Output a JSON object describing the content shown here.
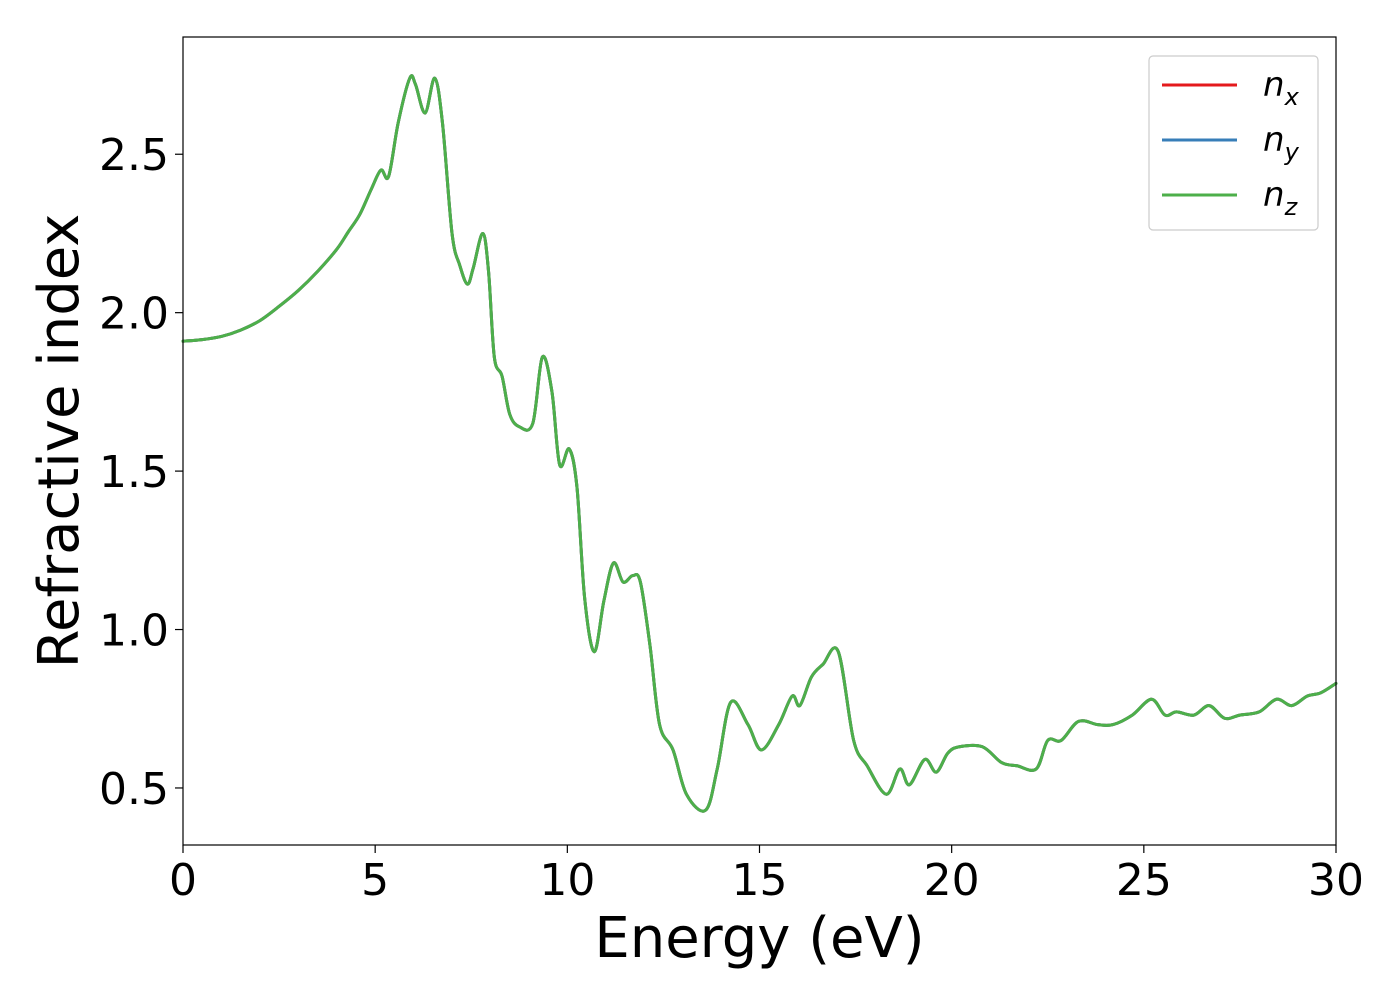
{
  "chart_data": {
    "type": "line",
    "title": "",
    "xlabel": "Energy (eV)",
    "ylabel": "Refractive index",
    "xlim": [
      0,
      30
    ],
    "ylim": [
      0.32,
      2.87
    ],
    "xticks": [
      "0",
      "5",
      "10",
      "15",
      "20",
      "25",
      "30"
    ],
    "yticks": [
      "0.5",
      "1.0",
      "1.5",
      "2.0",
      "2.5"
    ],
    "grid": false,
    "legend_position": "top-right",
    "series": [
      {
        "name": "n_x",
        "label_base": "n",
        "label_sub": "x",
        "color": "#e41a1c",
        "x": [
          0,
          0.5,
          1,
          1.5,
          2,
          2.5,
          3,
          3.5,
          4,
          4.3,
          4.6,
          4.9,
          5.15,
          5.35,
          5.6,
          5.9,
          6.05,
          6.3,
          6.55,
          6.75,
          7,
          7.2,
          7.4,
          7.55,
          7.8,
          7.95,
          8.1,
          8.3,
          8.5,
          8.75,
          9.1,
          9.35,
          9.6,
          9.8,
          10.05,
          10.25,
          10.45,
          10.7,
          10.95,
          11.2,
          11.45,
          11.7,
          11.9,
          12.15,
          12.4,
          12.75,
          13.1,
          13.6,
          13.9,
          14.25,
          14.7,
          15.05,
          15.5,
          15.85,
          16.05,
          16.35,
          16.65,
          17.05,
          17.45,
          17.8,
          18.3,
          18.65,
          18.9,
          19.3,
          19.6,
          19.9,
          20.2,
          20.8,
          21.3,
          21.7,
          22.2,
          22.5,
          22.85,
          23.3,
          23.8,
          24.2,
          24.7,
          25.2,
          25.55,
          25.85,
          26.3,
          26.7,
          27.1,
          27.5,
          28,
          28.45,
          28.85,
          29.25,
          29.6,
          30
        ],
        "y": [
          1.91,
          1.915,
          1.925,
          1.945,
          1.975,
          2.02,
          2.07,
          2.13,
          2.2,
          2.255,
          2.31,
          2.39,
          2.45,
          2.43,
          2.6,
          2.74,
          2.72,
          2.63,
          2.74,
          2.6,
          2.25,
          2.15,
          2.09,
          2.14,
          2.25,
          2.13,
          1.86,
          1.8,
          1.68,
          1.64,
          1.65,
          1.86,
          1.75,
          1.52,
          1.57,
          1.45,
          1.1,
          0.93,
          1.09,
          1.21,
          1.15,
          1.17,
          1.15,
          0.95,
          0.7,
          0.62,
          0.48,
          0.43,
          0.56,
          0.77,
          0.7,
          0.62,
          0.7,
          0.79,
          0.76,
          0.85,
          0.89,
          0.93,
          0.65,
          0.57,
          0.48,
          0.56,
          0.51,
          0.59,
          0.55,
          0.61,
          0.63,
          0.63,
          0.58,
          0.57,
          0.56,
          0.65,
          0.65,
          0.71,
          0.7,
          0.7,
          0.73,
          0.78,
          0.73,
          0.74,
          0.73,
          0.76,
          0.72,
          0.73,
          0.74,
          0.78,
          0.76,
          0.79,
          0.8,
          0.83
        ]
      },
      {
        "name": "n_y",
        "label_base": "n",
        "label_sub": "y",
        "color": "#377eb8",
        "x": [
          0,
          0.5,
          1,
          1.5,
          2,
          2.5,
          3,
          3.5,
          4,
          4.3,
          4.6,
          4.9,
          5.15,
          5.35,
          5.6,
          5.9,
          6.05,
          6.3,
          6.55,
          6.75,
          7,
          7.2,
          7.4,
          7.55,
          7.8,
          7.95,
          8.1,
          8.3,
          8.5,
          8.75,
          9.1,
          9.35,
          9.6,
          9.8,
          10.05,
          10.25,
          10.45,
          10.7,
          10.95,
          11.2,
          11.45,
          11.7,
          11.9,
          12.15,
          12.4,
          12.75,
          13.1,
          13.6,
          13.9,
          14.25,
          14.7,
          15.05,
          15.5,
          15.85,
          16.05,
          16.35,
          16.65,
          17.05,
          17.45,
          17.8,
          18.3,
          18.65,
          18.9,
          19.3,
          19.6,
          19.9,
          20.2,
          20.8,
          21.3,
          21.7,
          22.2,
          22.5,
          22.85,
          23.3,
          23.8,
          24.2,
          24.7,
          25.2,
          25.55,
          25.85,
          26.3,
          26.7,
          27.1,
          27.5,
          28,
          28.45,
          28.85,
          29.25,
          29.6,
          30
        ],
        "y": [
          1.91,
          1.915,
          1.925,
          1.945,
          1.975,
          2.02,
          2.07,
          2.13,
          2.2,
          2.255,
          2.31,
          2.39,
          2.45,
          2.43,
          2.6,
          2.74,
          2.72,
          2.63,
          2.74,
          2.6,
          2.25,
          2.15,
          2.09,
          2.14,
          2.25,
          2.13,
          1.86,
          1.8,
          1.68,
          1.64,
          1.65,
          1.86,
          1.75,
          1.52,
          1.57,
          1.45,
          1.1,
          0.93,
          1.09,
          1.21,
          1.15,
          1.17,
          1.15,
          0.95,
          0.7,
          0.62,
          0.48,
          0.43,
          0.56,
          0.77,
          0.7,
          0.62,
          0.7,
          0.79,
          0.76,
          0.85,
          0.89,
          0.93,
          0.65,
          0.57,
          0.48,
          0.56,
          0.51,
          0.59,
          0.55,
          0.61,
          0.63,
          0.63,
          0.58,
          0.57,
          0.56,
          0.65,
          0.65,
          0.71,
          0.7,
          0.7,
          0.73,
          0.78,
          0.73,
          0.74,
          0.73,
          0.76,
          0.72,
          0.73,
          0.74,
          0.78,
          0.76,
          0.79,
          0.8,
          0.83
        ]
      },
      {
        "name": "n_z",
        "label_base": "n",
        "label_sub": "z",
        "color": "#4daf4a",
        "x": [
          0,
          0.5,
          1,
          1.5,
          2,
          2.5,
          3,
          3.5,
          4,
          4.3,
          4.6,
          4.9,
          5.15,
          5.35,
          5.6,
          5.9,
          6.05,
          6.3,
          6.55,
          6.75,
          7,
          7.2,
          7.4,
          7.55,
          7.8,
          7.95,
          8.1,
          8.3,
          8.5,
          8.75,
          9.1,
          9.35,
          9.6,
          9.8,
          10.05,
          10.25,
          10.45,
          10.7,
          10.95,
          11.2,
          11.45,
          11.7,
          11.9,
          12.15,
          12.4,
          12.75,
          13.1,
          13.6,
          13.9,
          14.25,
          14.7,
          15.05,
          15.5,
          15.85,
          16.05,
          16.35,
          16.65,
          17.05,
          17.45,
          17.8,
          18.3,
          18.65,
          18.9,
          19.3,
          19.6,
          19.9,
          20.2,
          20.8,
          21.3,
          21.7,
          22.2,
          22.5,
          22.85,
          23.3,
          23.8,
          24.2,
          24.7,
          25.2,
          25.55,
          25.85,
          26.3,
          26.7,
          27.1,
          27.5,
          28,
          28.45,
          28.85,
          29.25,
          29.6,
          30
        ],
        "y": [
          1.91,
          1.915,
          1.925,
          1.945,
          1.975,
          2.02,
          2.07,
          2.13,
          2.2,
          2.255,
          2.31,
          2.39,
          2.45,
          2.43,
          2.6,
          2.74,
          2.72,
          2.63,
          2.74,
          2.6,
          2.25,
          2.15,
          2.09,
          2.14,
          2.25,
          2.13,
          1.86,
          1.8,
          1.68,
          1.64,
          1.65,
          1.86,
          1.75,
          1.52,
          1.57,
          1.45,
          1.1,
          0.93,
          1.09,
          1.21,
          1.15,
          1.17,
          1.15,
          0.95,
          0.7,
          0.62,
          0.48,
          0.43,
          0.56,
          0.77,
          0.7,
          0.62,
          0.7,
          0.79,
          0.76,
          0.85,
          0.89,
          0.93,
          0.65,
          0.57,
          0.48,
          0.56,
          0.51,
          0.59,
          0.55,
          0.61,
          0.63,
          0.63,
          0.58,
          0.57,
          0.56,
          0.65,
          0.65,
          0.71,
          0.7,
          0.7,
          0.73,
          0.78,
          0.73,
          0.74,
          0.73,
          0.76,
          0.72,
          0.73,
          0.74,
          0.78,
          0.76,
          0.79,
          0.8,
          0.83
        ]
      }
    ]
  }
}
